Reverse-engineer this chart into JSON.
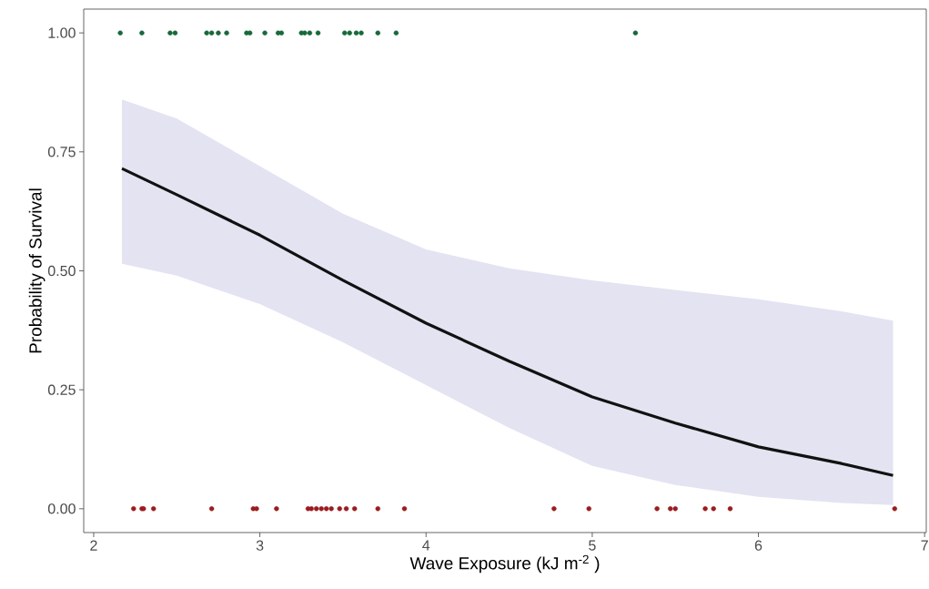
{
  "chart_data": {
    "type": "scatter",
    "xlabel": "Wave Exposure (kJ  m$^{-2}$ )",
    "ylabel": "Probability of Survival",
    "xlim": [
      1.94,
      7.01
    ],
    "ylim": [
      -0.05,
      1.05
    ],
    "xticks": [
      2,
      3,
      4,
      5,
      6,
      7
    ],
    "yticks": [
      {
        "value": 0,
        "label": "0.00"
      },
      {
        "value": 0.25,
        "label": "0.25"
      },
      {
        "value": 0.5,
        "label": "0.50"
      },
      {
        "value": 0.75,
        "label": "0.75"
      },
      {
        "value": 1,
        "label": "1.00"
      }
    ],
    "grid": false,
    "series": [
      {
        "type": "line",
        "marker": "none",
        "color": "#111111",
        "x": [
          2.17,
          2.5,
          3,
          3.5,
          4,
          4.5,
          5,
          5.5,
          6,
          6.5,
          6.81
        ],
        "values": [
          0.715,
          0.66,
          0.575,
          0.48,
          0.39,
          0.31,
          0.235,
          0.18,
          0.13,
          0.095,
          0.07
        ],
        "lower": [
          0.515,
          0.49,
          0.43,
          0.35,
          0.26,
          0.17,
          0.09,
          0.05,
          0.025,
          0.012,
          0.008
        ],
        "upper": [
          0.86,
          0.82,
          0.72,
          0.62,
          0.545,
          0.505,
          0.48,
          0.46,
          0.44,
          0.415,
          0.395
        ]
      },
      {
        "color": "#17693a",
        "x": [
          2.16,
          2.29,
          2.46,
          2.49,
          2.68,
          2.71,
          2.75,
          2.8,
          2.92,
          2.94,
          3.03,
          3.11,
          3.13,
          3.25,
          3.27,
          3.3,
          3.35,
          3.51,
          3.54,
          3.58,
          3.61,
          3.71,
          3.82,
          5.26
        ],
        "values": [
          1,
          1,
          1,
          1,
          1,
          1,
          1,
          1,
          1,
          1,
          1,
          1,
          1,
          1,
          1,
          1,
          1,
          1,
          1,
          1,
          1,
          1,
          1,
          1
        ]
      },
      {
        "color": "#9b1c1f",
        "x": [
          2.24,
          2.29,
          2.3,
          2.36,
          2.71,
          2.96,
          2.98,
          3.1,
          3.29,
          3.31,
          3.34,
          3.37,
          3.4,
          3.43,
          3.48,
          3.52,
          3.57,
          3.71,
          3.87,
          4.77,
          4.98,
          5.39,
          5.47,
          5.5,
          5.68,
          5.73,
          5.83,
          6.82
        ],
        "values": [
          0,
          0,
          0,
          0,
          0,
          0,
          0,
          0,
          0,
          0,
          0,
          0,
          0,
          0,
          0,
          0,
          0,
          0,
          0,
          0,
          0,
          0,
          0,
          0,
          0,
          0,
          0,
          0
        ]
      }
    ]
  }
}
